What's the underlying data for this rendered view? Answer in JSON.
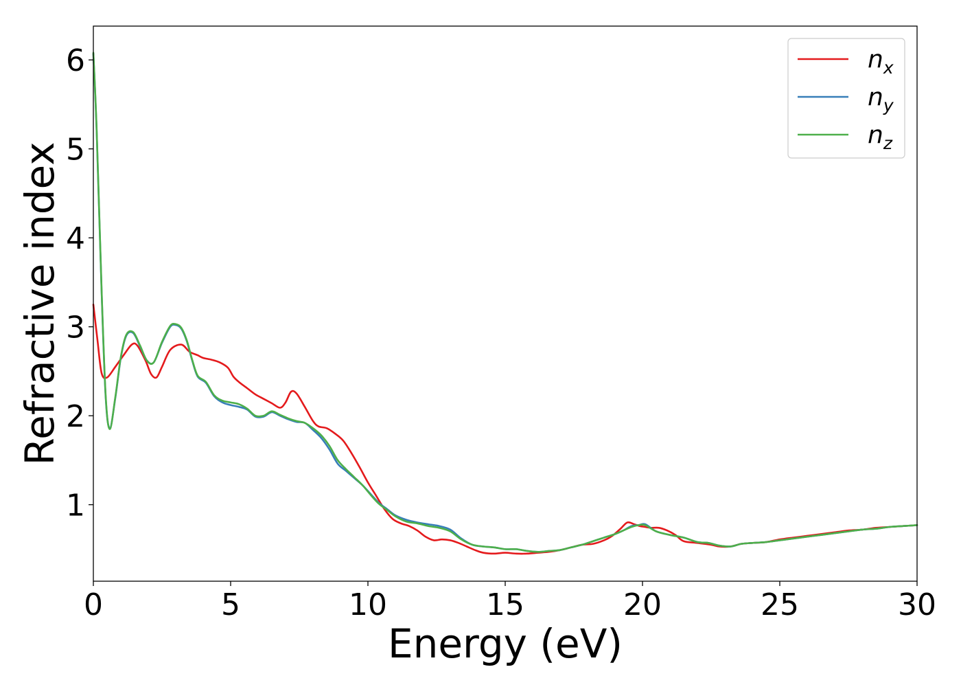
{
  "chart_data": {
    "type": "line",
    "title": "",
    "xlabel": "Energy (eV)",
    "ylabel": "Refractive index",
    "xlim": [
      0,
      30
    ],
    "ylim": [
      0.14,
      6.38
    ],
    "xticks": [
      0,
      5,
      10,
      15,
      20,
      25,
      30
    ],
    "yticks": [
      1,
      2,
      3,
      4,
      5,
      6
    ],
    "grid": false,
    "legend_position": "upper right",
    "series": [
      {
        "name": "n",
        "subscript": "x",
        "color": "#e41a1c",
        "x": [
          0,
          0.15,
          0.3,
          0.5,
          0.8,
          1.1,
          1.4,
          1.6,
          1.9,
          2.1,
          2.3,
          2.5,
          2.8,
          3.2,
          3.5,
          3.8,
          4.0,
          4.3,
          4.6,
          4.9,
          5.1,
          5.3,
          5.6,
          5.9,
          6.2,
          6.5,
          6.8,
          7.0,
          7.2,
          7.4,
          7.7,
          8.0,
          8.2,
          8.5,
          8.8,
          9.1,
          9.4,
          9.7,
          10.0,
          10.3,
          10.6,
          10.9,
          11.2,
          11.5,
          11.8,
          12.1,
          12.4,
          12.7,
          13.0,
          13.3,
          13.6,
          13.9,
          14.2,
          14.6,
          15.0,
          15.4,
          15.8,
          16.2,
          16.6,
          17.0,
          17.4,
          17.8,
          18.2,
          18.6,
          18.9,
          19.2,
          19.45,
          19.7,
          19.9,
          20.1,
          20.3,
          20.6,
          20.9,
          21.2,
          21.5,
          22.0,
          22.5,
          22.8,
          23.2,
          23.6,
          24.0,
          24.5,
          25.0,
          25.5,
          26.0,
          26.5,
          27.0,
          27.5,
          28.0,
          28.5,
          29.0,
          29.5,
          30.0
        ],
        "y": [
          3.25,
          2.85,
          2.48,
          2.43,
          2.55,
          2.68,
          2.8,
          2.79,
          2.62,
          2.47,
          2.43,
          2.55,
          2.74,
          2.8,
          2.72,
          2.68,
          2.65,
          2.63,
          2.6,
          2.54,
          2.44,
          2.38,
          2.31,
          2.24,
          2.19,
          2.14,
          2.09,
          2.15,
          2.27,
          2.25,
          2.1,
          1.94,
          1.88,
          1.86,
          1.8,
          1.72,
          1.58,
          1.42,
          1.25,
          1.1,
          0.95,
          0.84,
          0.79,
          0.76,
          0.71,
          0.64,
          0.6,
          0.61,
          0.6,
          0.57,
          0.53,
          0.49,
          0.46,
          0.45,
          0.46,
          0.45,
          0.45,
          0.46,
          0.47,
          0.49,
          0.52,
          0.55,
          0.56,
          0.6,
          0.65,
          0.73,
          0.8,
          0.78,
          0.76,
          0.75,
          0.74,
          0.74,
          0.71,
          0.66,
          0.59,
          0.57,
          0.55,
          0.53,
          0.53,
          0.56,
          0.57,
          0.58,
          0.61,
          0.63,
          0.65,
          0.67,
          0.69,
          0.71,
          0.72,
          0.74,
          0.75,
          0.76,
          0.77
        ]
      },
      {
        "name": "n",
        "subscript": "y",
        "color": "#377eb8",
        "x": [
          0,
          0.12,
          0.3,
          0.45,
          0.6,
          0.8,
          1.0,
          1.2,
          1.45,
          1.7,
          1.95,
          2.2,
          2.5,
          2.8,
          3.0,
          3.2,
          3.4,
          3.6,
          3.8,
          4.1,
          4.4,
          4.7,
          5.0,
          5.3,
          5.6,
          5.9,
          6.2,
          6.5,
          6.8,
          7.1,
          7.4,
          7.7,
          8.0,
          8.3,
          8.6,
          8.9,
          9.2,
          9.5,
          9.8,
          10.1,
          10.4,
          10.7,
          11.0,
          11.4,
          11.8,
          12.2,
          12.6,
          13.0,
          13.4,
          13.8,
          14.2,
          14.6,
          15.0,
          15.4,
          15.8,
          16.2,
          16.6,
          17.0,
          17.4,
          17.8,
          18.2,
          18.6,
          19.0,
          19.3,
          19.6,
          19.85,
          20.1,
          20.5,
          21.0,
          21.5,
          22.0,
          22.4,
          22.8,
          23.2,
          23.6,
          24.0,
          24.5,
          25.0,
          25.5,
          26.0,
          26.5,
          27.0,
          27.5,
          28.0,
          28.5,
          29.0,
          29.5,
          30.0
        ],
        "y": [
          6.07,
          5.2,
          3.4,
          2.2,
          1.86,
          2.2,
          2.65,
          2.9,
          2.93,
          2.78,
          2.62,
          2.6,
          2.82,
          3.0,
          3.02,
          2.98,
          2.84,
          2.62,
          2.44,
          2.37,
          2.22,
          2.15,
          2.12,
          2.1,
          2.07,
          1.99,
          1.99,
          2.04,
          2.0,
          1.96,
          1.93,
          1.92,
          1.84,
          1.75,
          1.62,
          1.46,
          1.38,
          1.3,
          1.22,
          1.12,
          1.02,
          0.95,
          0.88,
          0.83,
          0.8,
          0.78,
          0.76,
          0.72,
          0.62,
          0.55,
          0.53,
          0.52,
          0.5,
          0.5,
          0.48,
          0.47,
          0.48,
          0.49,
          0.52,
          0.55,
          0.59,
          0.63,
          0.67,
          0.71,
          0.76,
          0.77,
          0.78,
          0.7,
          0.66,
          0.63,
          0.58,
          0.57,
          0.54,
          0.53,
          0.56,
          0.57,
          0.58,
          0.6,
          0.62,
          0.64,
          0.66,
          0.68,
          0.7,
          0.72,
          0.73,
          0.75,
          0.76,
          0.77
        ]
      },
      {
        "name": "n",
        "subscript": "z",
        "color": "#4daf4a",
        "x": [
          0,
          0.12,
          0.3,
          0.45,
          0.6,
          0.8,
          1.0,
          1.2,
          1.45,
          1.7,
          1.95,
          2.2,
          2.5,
          2.8,
          3.0,
          3.2,
          3.4,
          3.6,
          3.8,
          4.1,
          4.4,
          4.7,
          5.0,
          5.3,
          5.6,
          5.9,
          6.2,
          6.5,
          6.8,
          7.1,
          7.4,
          7.7,
          8.0,
          8.3,
          8.6,
          8.9,
          9.2,
          9.5,
          9.8,
          10.1,
          10.4,
          10.7,
          11.0,
          11.4,
          11.8,
          12.2,
          12.6,
          13.0,
          13.4,
          13.8,
          14.2,
          14.6,
          15.0,
          15.4,
          15.8,
          16.2,
          16.6,
          17.0,
          17.4,
          17.8,
          18.2,
          18.6,
          19.0,
          19.3,
          19.6,
          19.85,
          20.1,
          20.5,
          21.0,
          21.5,
          22.0,
          22.4,
          22.8,
          23.2,
          23.6,
          24.0,
          24.5,
          25.0,
          25.5,
          26.0,
          26.5,
          27.0,
          27.5,
          28.0,
          28.5,
          29.0,
          29.5,
          30.0
        ],
        "y": [
          6.08,
          5.22,
          3.42,
          2.22,
          1.85,
          2.21,
          2.66,
          2.91,
          2.94,
          2.79,
          2.62,
          2.6,
          2.83,
          3.01,
          3.03,
          2.99,
          2.85,
          2.63,
          2.45,
          2.38,
          2.23,
          2.17,
          2.15,
          2.13,
          2.08,
          2.0,
          2.0,
          2.05,
          2.01,
          1.97,
          1.94,
          1.92,
          1.86,
          1.78,
          1.66,
          1.5,
          1.4,
          1.31,
          1.22,
          1.11,
          1.01,
          0.94,
          0.87,
          0.81,
          0.79,
          0.76,
          0.74,
          0.7,
          0.61,
          0.55,
          0.53,
          0.52,
          0.5,
          0.5,
          0.48,
          0.47,
          0.48,
          0.49,
          0.52,
          0.55,
          0.59,
          0.63,
          0.67,
          0.71,
          0.75,
          0.77,
          0.77,
          0.7,
          0.66,
          0.63,
          0.58,
          0.57,
          0.54,
          0.53,
          0.56,
          0.57,
          0.58,
          0.6,
          0.62,
          0.64,
          0.66,
          0.68,
          0.7,
          0.72,
          0.73,
          0.75,
          0.76,
          0.77
        ]
      }
    ]
  }
}
